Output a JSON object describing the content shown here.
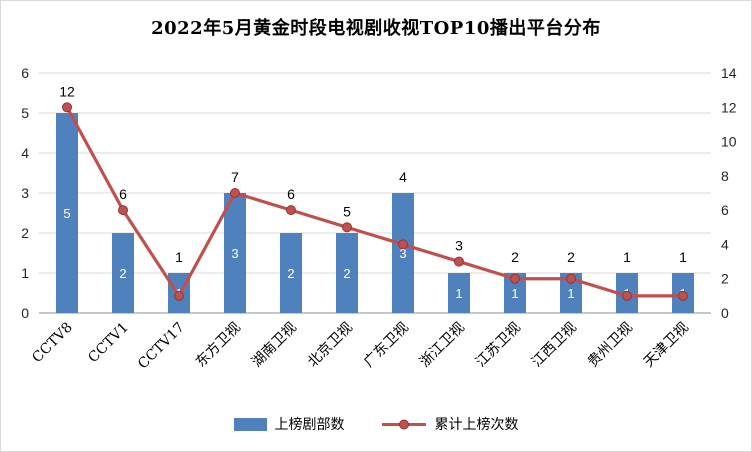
{
  "title": "2022年5月黄金时段电视剧收视TOP10播出平台分布",
  "colors": {
    "bar": "#4f81bd",
    "line": "#c0504d",
    "line_marker_border": "#943634",
    "grid": "#d9d9d9",
    "axis": "#8c8c8c",
    "tick_text": "#262626",
    "label_text": "#000000",
    "bar_label": "#ffffff"
  },
  "legend": [
    {
      "label": "上榜剧部数",
      "type": "bar"
    },
    {
      "label": "累计上榜次数",
      "type": "line"
    }
  ],
  "chart_data": {
    "type": "bar+line",
    "title": "2022年5月黄金时段电视剧收视TOP10播出平台分布",
    "categories": [
      "CCTV8",
      "CCTV1",
      "CCTV17",
      "东方卫视",
      "湖南卫视",
      "北京卫视",
      "广东卫视",
      "浙江卫视",
      "江苏卫视",
      "江西卫视",
      "贵州卫视",
      "天津卫视"
    ],
    "series": [
      {
        "name": "上榜剧部数",
        "type": "bar",
        "axis": "left",
        "values": [
          5,
          2,
          1,
          3,
          2,
          2,
          3,
          1,
          1,
          1,
          1,
          1
        ]
      },
      {
        "name": "累计上榜次数",
        "type": "line",
        "axis": "right",
        "values": [
          12,
          6,
          1,
          7,
          6,
          5,
          4,
          3,
          2,
          2,
          1,
          1
        ]
      }
    ],
    "left_axis": {
      "min": 0,
      "max": 6,
      "ticks": [
        0,
        1,
        2,
        3,
        4,
        5,
        6
      ]
    },
    "right_axis": {
      "min": 0,
      "max": 14,
      "ticks": [
        0,
        2,
        4,
        6,
        8,
        10,
        12,
        14
      ]
    },
    "grid": true,
    "legend_position": "bottom",
    "x_label_rotation": -45
  }
}
